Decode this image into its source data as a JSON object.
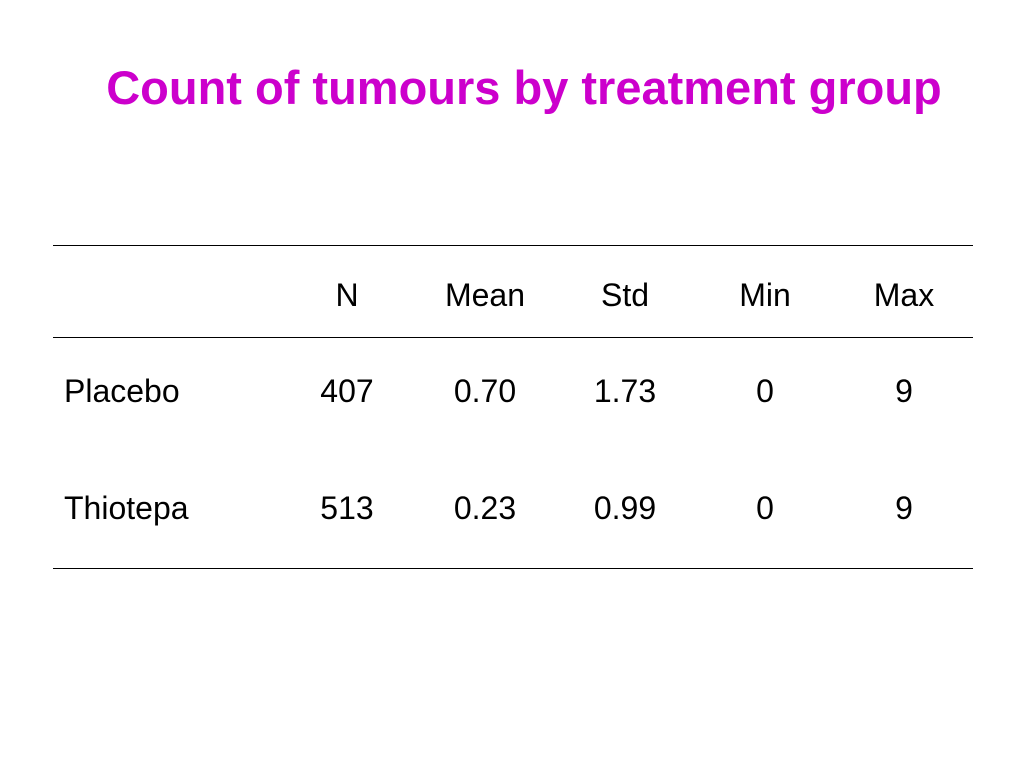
{
  "title": "Count of tumours by treatment group",
  "table": {
    "header": [
      "N",
      "Mean",
      "Std",
      "Min",
      "Max"
    ],
    "rows": [
      [
        "Placebo",
        "407",
        "0.70",
        "1.73",
        "0",
        "9"
      ],
      [
        "Thiotepa",
        "513",
        "0.23",
        "0.99",
        "0",
        "9"
      ]
    ]
  }
}
